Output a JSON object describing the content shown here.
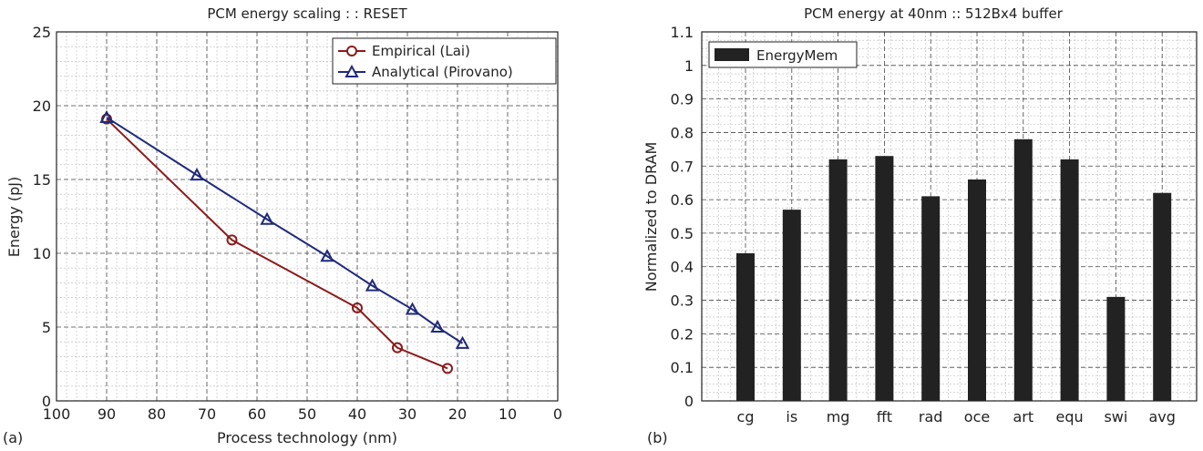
{
  "chart_data": [
    {
      "type": "line",
      "panel_label": "(a)",
      "title": "PCM energy scaling : : RESET",
      "xlabel": "Process technology (nm)",
      "ylabel": "Energy (pJ)",
      "xlim": [
        100,
        0
      ],
      "ylim": [
        0,
        25
      ],
      "xticks": [
        100,
        90,
        80,
        70,
        60,
        50,
        40,
        30,
        20,
        10,
        0
      ],
      "yticks": [
        0,
        5,
        10,
        15,
        20,
        25
      ],
      "grid": true,
      "legend_position": "top-right",
      "series": [
        {
          "name": "Empirical (Lai)",
          "color": "#8b1a1a",
          "marker": "circle",
          "x": [
            90,
            65,
            40,
            32,
            22
          ],
          "y": [
            19.1,
            10.9,
            6.3,
            3.6,
            2.2
          ]
        },
        {
          "name": "Analytical (Pirovano)",
          "color": "#1f2a7a",
          "marker": "triangle",
          "x": [
            90,
            72,
            58,
            46,
            37,
            29,
            24,
            19
          ],
          "y": [
            19.2,
            15.3,
            12.3,
            9.8,
            7.8,
            6.2,
            5.0,
            3.9
          ]
        }
      ]
    },
    {
      "type": "bar",
      "panel_label": "(b)",
      "title": "PCM energy at 40nm :: 512Bx4 buffer",
      "xlabel": "",
      "ylabel": "Normalized to DRAM",
      "ylim": [
        0,
        1.1
      ],
      "yticks": [
        "0",
        "0.1",
        "0.2",
        "0.3",
        "0.4",
        "0.5",
        "0.6",
        "0.7",
        "0.8",
        "0.9",
        "1",
        "1.1"
      ],
      "grid": true,
      "legend_position": "top-left",
      "categories": [
        "cg",
        "is",
        "mg",
        "fft",
        "rad",
        "oce",
        "art",
        "equ",
        "swi",
        "avg"
      ],
      "series": [
        {
          "name": "EnergyMem",
          "color": "#222222",
          "values": [
            0.44,
            0.57,
            0.72,
            0.73,
            0.61,
            0.66,
            0.78,
            0.72,
            0.31,
            0.62
          ]
        }
      ]
    }
  ]
}
